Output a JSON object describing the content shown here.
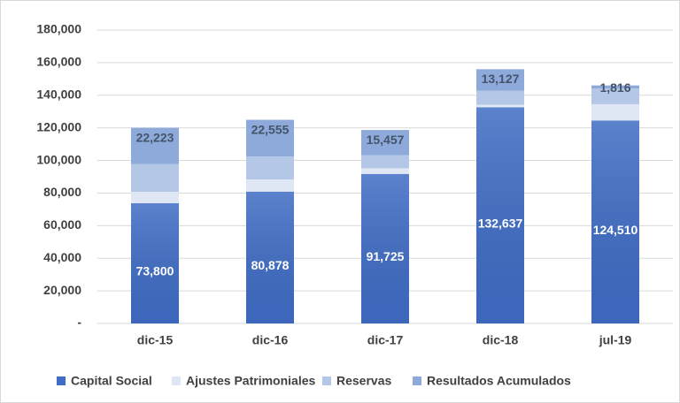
{
  "chart_data": {
    "type": "stacked_bar",
    "categories": [
      "dic-15",
      "dic-16",
      "dic-17",
      "dic-18",
      "jul-19"
    ],
    "series": [
      {
        "name": "Capital Social",
        "color": "#3f6cc4",
        "values": [
          73800,
          80878,
          91725,
          132637,
          124510
        ],
        "value_labels": [
          "73,800",
          "80,878",
          "91,725",
          "132,637",
          "124,510"
        ]
      },
      {
        "name": "Ajustes Patrimoniales",
        "color": "#dfe7f5",
        "values": [
          7000,
          7500,
          3500,
          1500,
          10000
        ]
      },
      {
        "name": "Reservas",
        "color": "#b4c7e7",
        "values": [
          17000,
          14000,
          8000,
          8700,
          9700
        ]
      },
      {
        "name": "Resultados Acumulados",
        "color": "#8eaadb",
        "values": [
          22223,
          22555,
          15457,
          13127,
          1816
        ],
        "value_labels": [
          "22,223",
          "22,555",
          "15,457",
          "13,127",
          "1,816"
        ]
      }
    ],
    "ylim": [
      0,
      180000
    ],
    "yticks": [
      {
        "value": 0,
        "label": "-"
      },
      {
        "value": 20000,
        "label": "20,000"
      },
      {
        "value": 40000,
        "label": "40,000"
      },
      {
        "value": 60000,
        "label": "60,000"
      },
      {
        "value": 80000,
        "label": "80,000"
      },
      {
        "value": 100000,
        "label": "100,000"
      },
      {
        "value": 120000,
        "label": "120,000"
      },
      {
        "value": 140000,
        "label": "140,000"
      },
      {
        "value": 160000,
        "label": "160,000"
      },
      {
        "value": 180000,
        "label": "180,000"
      }
    ],
    "grid": true,
    "legend": "bottom"
  }
}
